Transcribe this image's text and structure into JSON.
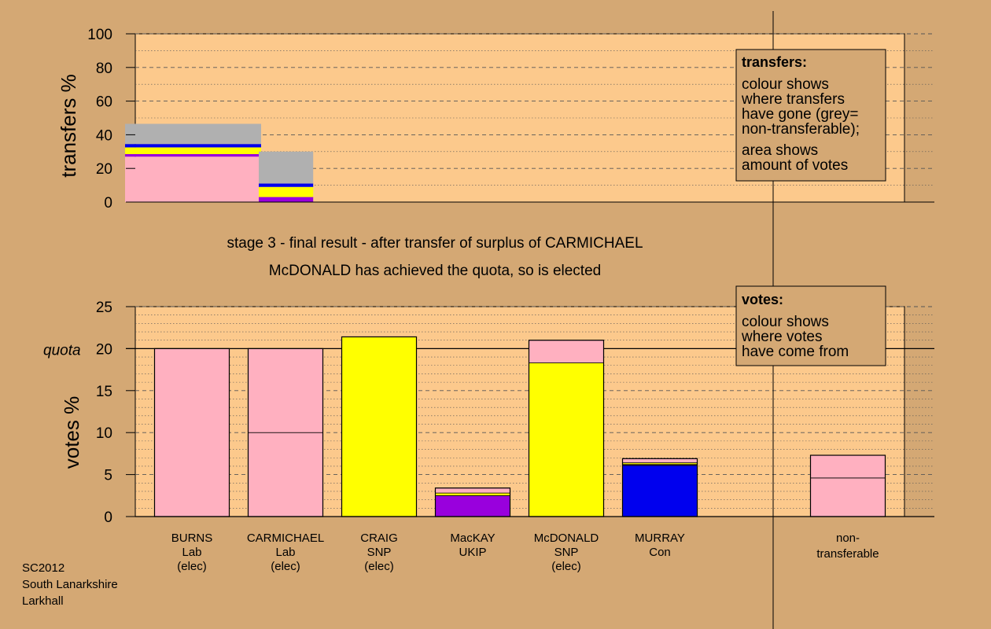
{
  "colors": {
    "background": "#d4a874",
    "plot_background": "#fcc98c",
    "Lab": "#ffb0c0",
    "SNP": "#ffff00",
    "UKIP": "#9900dd",
    "Con": "#0000ee",
    "nontransferable": "#b0b0b0"
  },
  "captions": {
    "line1": "stage 3 - final result - after transfer of surplus of CARMICHAEL",
    "line2": "McDONALD has achieved the quota, so is elected"
  },
  "legends": {
    "transfers": {
      "heading": "transfers:",
      "lines": [
        "colour shows",
        "where transfers",
        "have gone (grey=",
        "non-transferable);",
        "area shows",
        "amount of votes"
      ]
    },
    "votes": {
      "heading": "votes:",
      "lines": [
        "colour shows",
        "where votes",
        "have come from"
      ]
    }
  },
  "candidates": [
    {
      "name": "BURNS",
      "party": "Lab",
      "status": "(elec)"
    },
    {
      "name": "CARMICHAEL",
      "party": "Lab",
      "status": "(elec)"
    },
    {
      "name": "CRAIG",
      "party": "SNP",
      "status": "(elec)"
    },
    {
      "name": "MacKAY",
      "party": "UKIP",
      "status": ""
    },
    {
      "name": "McDONALD",
      "party": "SNP",
      "status": "(elec)"
    },
    {
      "name": "MURRAY",
      "party": "Con",
      "status": ""
    }
  ],
  "nontransferable_label": [
    "non-",
    "transferable"
  ],
  "footer": [
    "SC2012",
    "South Lanarkshire",
    "Larkhall"
  ],
  "chart_data": [
    {
      "type": "bar",
      "ylabel": "transfers %",
      "ylim": [
        0,
        100
      ],
      "yticks": [
        0,
        20,
        40,
        60,
        80,
        100
      ],
      "grid": true,
      "transfer_columns": [
        {
          "width_share": 1.0,
          "segments": [
            {
              "party": "Lab",
              "value": 27
            },
            {
              "party": "UKIP",
              "value": 1.5
            },
            {
              "party": "SNP",
              "value": 4
            },
            {
              "party": "Con",
              "value": 2
            },
            {
              "party": "nontransferable",
              "value": 12
            }
          ]
        },
        {
          "width_share": 0.4,
          "segments": [
            {
              "party": "UKIP",
              "value": 3
            },
            {
              "party": "SNP",
              "value": 6
            },
            {
              "party": "Con",
              "value": 2
            },
            {
              "party": "nontransferable",
              "value": 19
            }
          ]
        }
      ]
    },
    {
      "type": "bar",
      "ylabel": "votes %",
      "ylim": [
        0,
        25
      ],
      "yticks": [
        0,
        5,
        10,
        15,
        20,
        25
      ],
      "quota": 20,
      "quota_label": "quota",
      "grid": true,
      "bars": [
        {
          "candidate": "BURNS",
          "segments": [
            {
              "party": "Lab",
              "value": 20
            }
          ]
        },
        {
          "candidate": "CARMICHAEL",
          "segments": [
            {
              "party": "Lab",
              "value": 10
            },
            {
              "party": "Lab",
              "value": 10
            }
          ]
        },
        {
          "candidate": "CRAIG",
          "segments": [
            {
              "party": "SNP",
              "value": 21.4
            }
          ]
        },
        {
          "candidate": "MacKAY",
          "segments": [
            {
              "party": "UKIP",
              "value": 2.5
            },
            {
              "party": "SNP",
              "value": 0.3
            },
            {
              "party": "Lab",
              "value": 0.6
            }
          ]
        },
        {
          "candidate": "McDONALD",
          "segments": [
            {
              "party": "SNP",
              "value": 18.3
            },
            {
              "party": "Lab",
              "value": 2.7
            }
          ]
        },
        {
          "candidate": "MURRAY",
          "segments": [
            {
              "party": "Con",
              "value": 6.1
            },
            {
              "party": "UKIP",
              "value": 0.1
            },
            {
              "party": "SNP",
              "value": 0.2
            },
            {
              "party": "Lab",
              "value": 0.5
            }
          ]
        },
        {
          "candidate": "non-transferable",
          "segments": [
            {
              "party": "Lab",
              "value": 4.6
            },
            {
              "party": "Lab",
              "value": 2.7
            }
          ]
        }
      ]
    }
  ]
}
